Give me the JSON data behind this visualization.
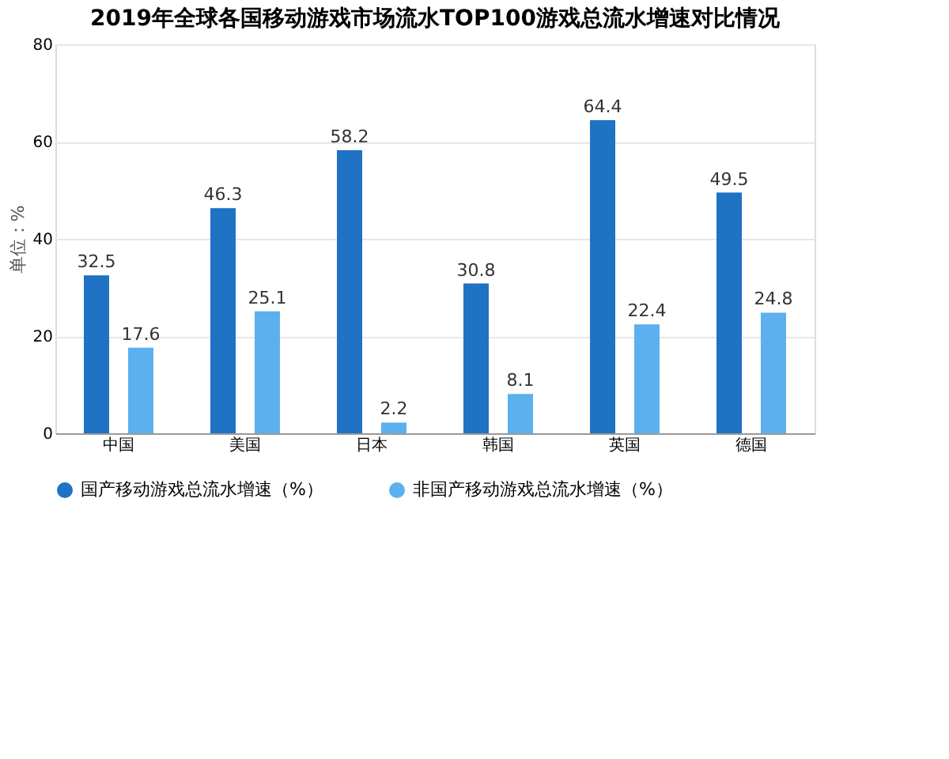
{
  "chart_data": {
    "type": "bar",
    "title": "2019年全球各国移动游戏市场流水TOP100游戏总流水增速对比情况",
    "ylabel": "单位：%",
    "categories": [
      "中国",
      "美国",
      "日本",
      "韩国",
      "英国",
      "德国"
    ],
    "series": [
      {
        "name": "国产移动游戏总流水增速（%）",
        "color": "#1f72c4",
        "values": [
          32.5,
          46.3,
          58.2,
          30.8,
          64.4,
          49.5
        ]
      },
      {
        "name": "非国产移动游戏总流水增速（%）",
        "color": "#5db0ee",
        "values": [
          17.6,
          25.1,
          2.2,
          8.1,
          22.4,
          24.8
        ]
      }
    ],
    "ylim": [
      0,
      80
    ],
    "yticks": [
      0,
      20,
      40,
      60,
      80
    ],
    "grid": "y",
    "legend": "bottom",
    "data_labels": true
  }
}
